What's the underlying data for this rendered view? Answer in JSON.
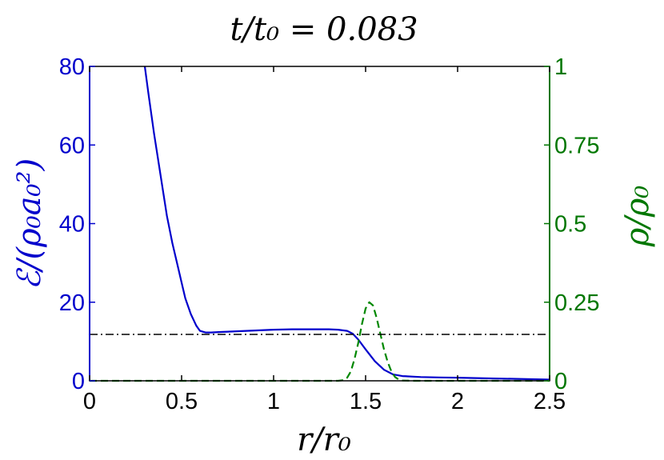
{
  "chart_data": {
    "type": "line",
    "title": "t/t₀ = 0.083",
    "xlabel": "r/r₀",
    "ylabel_left": "ℰ/(ρ₀a₀²)",
    "ylabel_right": "ρ/ρ₀",
    "xlim": [
      0,
      2.5
    ],
    "ylim_left": [
      0,
      80
    ],
    "ylim_right": [
      0,
      1
    ],
    "grid": false,
    "legend": "none",
    "x_ticks": [
      {
        "v": 0,
        "label": "0"
      },
      {
        "v": 0.5,
        "label": "0.5"
      },
      {
        "v": 1,
        "label": "1"
      },
      {
        "v": 1.5,
        "label": "1.5"
      },
      {
        "v": 2,
        "label": "2"
      },
      {
        "v": 2.5,
        "label": "2.5"
      }
    ],
    "y_left_ticks": [
      {
        "v": 0,
        "label": "0"
      },
      {
        "v": 20,
        "label": "20"
      },
      {
        "v": 40,
        "label": "40"
      },
      {
        "v": 60,
        "label": "60"
      },
      {
        "v": 80,
        "label": "80"
      }
    ],
    "y_right_ticks": [
      {
        "v": 0,
        "label": "0"
      },
      {
        "v": 0.25,
        "label": "0.25"
      },
      {
        "v": 0.5,
        "label": "0.5"
      },
      {
        "v": 0.75,
        "label": "0.75"
      },
      {
        "v": 1,
        "label": "1"
      }
    ],
    "colors": {
      "left_axis": "#0000cc",
      "right_axis": "#007700",
      "energy": "#0000cc",
      "density": "#008800",
      "reference": "#000000"
    },
    "series": [
      {
        "id": "energy",
        "axis": "left",
        "style": "solid",
        "x": [
          0.3,
          0.32,
          0.35,
          0.38,
          0.4,
          0.42,
          0.45,
          0.48,
          0.5,
          0.52,
          0.55,
          0.58,
          0.6,
          0.63,
          0.66,
          0.7,
          0.8,
          0.9,
          1.0,
          1.1,
          1.2,
          1.3,
          1.35,
          1.4,
          1.43,
          1.46,
          1.5,
          1.55,
          1.6,
          1.65,
          1.7,
          1.8,
          1.9,
          2.0,
          2.1,
          2.2,
          2.3,
          2.4,
          2.5
        ],
        "y": [
          80,
          73,
          63,
          54,
          48,
          42,
          35,
          29,
          25,
          21,
          17,
          14,
          12.7,
          12.3,
          12.3,
          12.4,
          12.6,
          12.8,
          13.0,
          13.1,
          13.1,
          13.1,
          13.0,
          12.7,
          12.0,
          10.5,
          8.0,
          5.0,
          2.8,
          1.6,
          1.2,
          0.95,
          0.85,
          0.8,
          0.7,
          0.6,
          0.5,
          0.4,
          0.3
        ]
      },
      {
        "id": "density",
        "axis": "right",
        "style": "dashed",
        "x": [
          0,
          1.2,
          1.35,
          1.38,
          1.4,
          1.42,
          1.44,
          1.46,
          1.48,
          1.5,
          1.52,
          1.54,
          1.56,
          1.58,
          1.6,
          1.62,
          1.64,
          1.66,
          1.68,
          1.7,
          1.75,
          2.5
        ],
        "y": [
          0,
          0,
          0,
          0.002,
          0.01,
          0.03,
          0.07,
          0.12,
          0.18,
          0.23,
          0.25,
          0.24,
          0.2,
          0.15,
          0.1,
          0.06,
          0.03,
          0.012,
          0.004,
          0.001,
          0,
          0
        ]
      },
      {
        "id": "reference",
        "axis": "left",
        "style": "dashdot",
        "x": [
          0,
          2.5
        ],
        "y": [
          11.8,
          11.8
        ]
      }
    ]
  }
}
